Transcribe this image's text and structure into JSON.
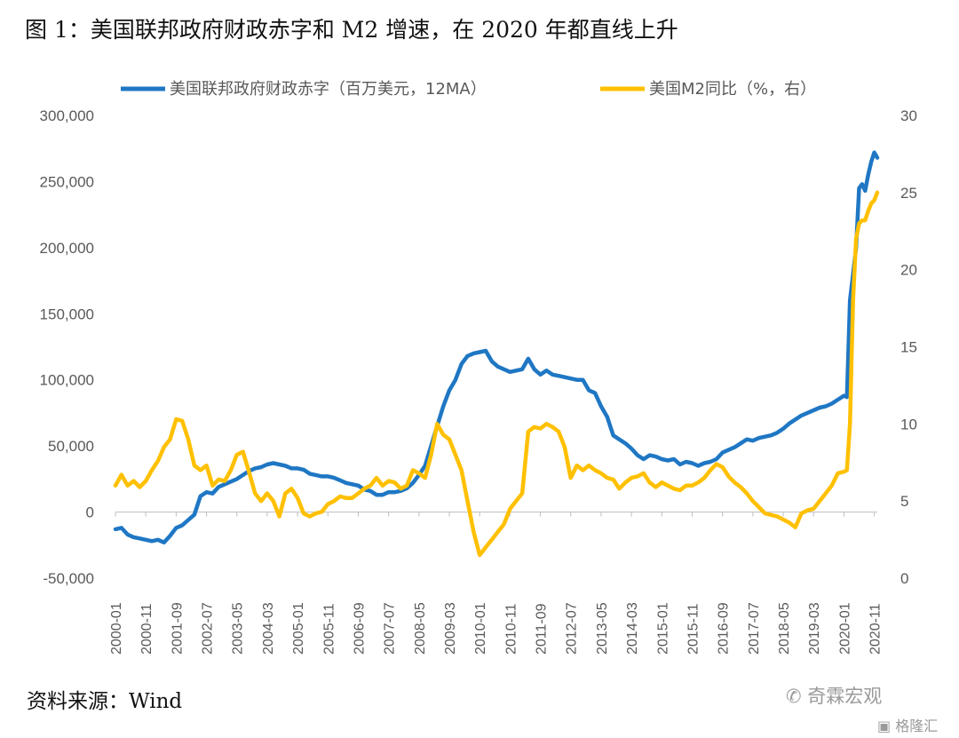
{
  "title": "图 1：美国联邦政府财政赤字和 M2 增速，在 2020 年都直线上升",
  "source": "资料来源：Wind",
  "watermark": {
    "main": "奇霖宏观",
    "sub": "格隆汇",
    "icon": "wechat-icon",
    "logo": "gelonghui-logo"
  },
  "chart_data": {
    "type": "line",
    "title": "图 1：美国联邦政府财政赤字和 M2 增速，在 2020 年都直线上升",
    "legend_position": "top",
    "grid": false,
    "x_tick_labels": [
      "2000-01",
      "2000-11",
      "2001-09",
      "2002-07",
      "2003-05",
      "2004-03",
      "2005-01",
      "2005-11",
      "2006-09",
      "2007-07",
      "2008-05",
      "2009-03",
      "2010-01",
      "2010-11",
      "2011-09",
      "2012-07",
      "2013-05",
      "2014-03",
      "2015-01",
      "2015-11",
      "2016-09",
      "2017-07",
      "2018-05",
      "2019-03",
      "2020-01",
      "2020-11"
    ],
    "y_left": {
      "range": [
        -50000,
        300000
      ],
      "ticks": [
        "-50,000",
        "0",
        "50,000",
        "100,000",
        "150,000",
        "200,000",
        "250,000",
        "300,000"
      ],
      "tick_values": [
        -50000,
        0,
        50000,
        100000,
        150000,
        200000,
        250000,
        300000
      ]
    },
    "y_right": {
      "range": [
        0,
        30
      ],
      "ticks": [
        "0",
        "5",
        "10",
        "15",
        "20",
        "25",
        "30"
      ],
      "tick_values": [
        0,
        5,
        10,
        15,
        20,
        25,
        30
      ]
    },
    "series": [
      {
        "name": "美国联邦政府财政赤字（百万美元，12MA）",
        "axis": "left",
        "color": "#1f77c4",
        "points": [
          [
            "2000-01",
            -13000
          ],
          [
            "2000-03",
            -12000
          ],
          [
            "2000-05",
            -17000
          ],
          [
            "2000-07",
            -19000
          ],
          [
            "2000-09",
            -20000
          ],
          [
            "2000-11",
            -21000
          ],
          [
            "2001-01",
            -22000
          ],
          [
            "2001-03",
            -21000
          ],
          [
            "2001-05",
            -23000
          ],
          [
            "2001-07",
            -18000
          ],
          [
            "2001-09",
            -12000
          ],
          [
            "2001-11",
            -10000
          ],
          [
            "2002-01",
            -6000
          ],
          [
            "2002-03",
            -2000
          ],
          [
            "2002-05",
            12000
          ],
          [
            "2002-07",
            15000
          ],
          [
            "2002-09",
            14000
          ],
          [
            "2002-11",
            19000
          ],
          [
            "2003-01",
            21000
          ],
          [
            "2003-03",
            23000
          ],
          [
            "2003-05",
            25000
          ],
          [
            "2003-07",
            28000
          ],
          [
            "2003-09",
            31000
          ],
          [
            "2003-11",
            33000
          ],
          [
            "2004-01",
            34000
          ],
          [
            "2004-03",
            36000
          ],
          [
            "2004-05",
            37000
          ],
          [
            "2004-07",
            36000
          ],
          [
            "2004-09",
            35000
          ],
          [
            "2004-11",
            33000
          ],
          [
            "2005-01",
            33000
          ],
          [
            "2005-03",
            32000
          ],
          [
            "2005-05",
            29000
          ],
          [
            "2005-07",
            28000
          ],
          [
            "2005-09",
            27000
          ],
          [
            "2005-11",
            27000
          ],
          [
            "2006-01",
            26000
          ],
          [
            "2006-03",
            24000
          ],
          [
            "2006-05",
            22000
          ],
          [
            "2006-07",
            21000
          ],
          [
            "2006-09",
            20000
          ],
          [
            "2006-11",
            17000
          ],
          [
            "2007-01",
            16000
          ],
          [
            "2007-03",
            13000
          ],
          [
            "2007-05",
            13000
          ],
          [
            "2007-07",
            15000
          ],
          [
            "2007-09",
            15000
          ],
          [
            "2007-11",
            16000
          ],
          [
            "2008-01",
            18000
          ],
          [
            "2008-03",
            22000
          ],
          [
            "2008-05",
            28000
          ],
          [
            "2008-07",
            35000
          ],
          [
            "2008-09",
            50000
          ],
          [
            "2008-11",
            65000
          ],
          [
            "2009-01",
            80000
          ],
          [
            "2009-03",
            92000
          ],
          [
            "2009-05",
            100000
          ],
          [
            "2009-07",
            112000
          ],
          [
            "2009-09",
            118000
          ],
          [
            "2009-11",
            120000
          ],
          [
            "2010-01",
            121000
          ],
          [
            "2010-03",
            122000
          ],
          [
            "2010-05",
            114000
          ],
          [
            "2010-07",
            110000
          ],
          [
            "2010-09",
            108000
          ],
          [
            "2010-11",
            106000
          ],
          [
            "2011-01",
            107000
          ],
          [
            "2011-03",
            108000
          ],
          [
            "2011-05",
            116000
          ],
          [
            "2011-07",
            108000
          ],
          [
            "2011-09",
            104000
          ],
          [
            "2011-11",
            107000
          ],
          [
            "2012-01",
            104000
          ],
          [
            "2012-03",
            103000
          ],
          [
            "2012-05",
            102000
          ],
          [
            "2012-07",
            101000
          ],
          [
            "2012-09",
            100000
          ],
          [
            "2012-11",
            100000
          ],
          [
            "2013-01",
            92000
          ],
          [
            "2013-03",
            90000
          ],
          [
            "2013-05",
            80000
          ],
          [
            "2013-07",
            72000
          ],
          [
            "2013-09",
            58000
          ],
          [
            "2013-11",
            55000
          ],
          [
            "2014-01",
            52000
          ],
          [
            "2014-03",
            48000
          ],
          [
            "2014-05",
            43000
          ],
          [
            "2014-07",
            40000
          ],
          [
            "2014-09",
            43000
          ],
          [
            "2014-11",
            42000
          ],
          [
            "2015-01",
            40000
          ],
          [
            "2015-03",
            39000
          ],
          [
            "2015-05",
            40000
          ],
          [
            "2015-07",
            36000
          ],
          [
            "2015-09",
            38000
          ],
          [
            "2015-11",
            37000
          ],
          [
            "2016-01",
            35000
          ],
          [
            "2016-03",
            37000
          ],
          [
            "2016-05",
            38000
          ],
          [
            "2016-07",
            40000
          ],
          [
            "2016-09",
            45000
          ],
          [
            "2016-11",
            47000
          ],
          [
            "2017-01",
            49000
          ],
          [
            "2017-03",
            52000
          ],
          [
            "2017-05",
            55000
          ],
          [
            "2017-07",
            54000
          ],
          [
            "2017-09",
            56000
          ],
          [
            "2017-11",
            57000
          ],
          [
            "2018-01",
            58000
          ],
          [
            "2018-03",
            60000
          ],
          [
            "2018-05",
            63000
          ],
          [
            "2018-07",
            67000
          ],
          [
            "2018-09",
            70000
          ],
          [
            "2018-11",
            73000
          ],
          [
            "2019-01",
            75000
          ],
          [
            "2019-03",
            77000
          ],
          [
            "2019-05",
            79000
          ],
          [
            "2019-07",
            80000
          ],
          [
            "2019-09",
            82000
          ],
          [
            "2019-11",
            85000
          ],
          [
            "2020-01",
            88000
          ],
          [
            "2020-02",
            87000
          ],
          [
            "2020-03",
            160000
          ],
          [
            "2020-04",
            180000
          ],
          [
            "2020-05",
            200000
          ],
          [
            "2020-06",
            245000
          ],
          [
            "2020-07",
            248000
          ],
          [
            "2020-08",
            243000
          ],
          [
            "2020-09",
            255000
          ],
          [
            "2020-10",
            265000
          ],
          [
            "2020-11",
            272000
          ],
          [
            "2020-12",
            268000
          ]
        ]
      },
      {
        "name": "美国M2同比（%，右）",
        "axis": "right",
        "color": "#ffc000",
        "points": [
          [
            "2000-01",
            6.0
          ],
          [
            "2000-03",
            6.7
          ],
          [
            "2000-05",
            6.0
          ],
          [
            "2000-07",
            6.3
          ],
          [
            "2000-09",
            5.9
          ],
          [
            "2000-11",
            6.3
          ],
          [
            "2001-01",
            7.0
          ],
          [
            "2001-03",
            7.6
          ],
          [
            "2001-05",
            8.5
          ],
          [
            "2001-07",
            9.0
          ],
          [
            "2001-09",
            10.3
          ],
          [
            "2001-11",
            10.2
          ],
          [
            "2002-01",
            9.0
          ],
          [
            "2002-03",
            7.3
          ],
          [
            "2002-05",
            7.0
          ],
          [
            "2002-07",
            7.3
          ],
          [
            "2002-09",
            6.0
          ],
          [
            "2002-11",
            6.4
          ],
          [
            "2003-01",
            6.3
          ],
          [
            "2003-03",
            7.0
          ],
          [
            "2003-05",
            8.0
          ],
          [
            "2003-07",
            8.2
          ],
          [
            "2003-09",
            6.9
          ],
          [
            "2003-11",
            5.5
          ],
          [
            "2004-01",
            5.0
          ],
          [
            "2004-03",
            5.5
          ],
          [
            "2004-05",
            5.0
          ],
          [
            "2004-07",
            4.0
          ],
          [
            "2004-09",
            5.5
          ],
          [
            "2004-11",
            5.8
          ],
          [
            "2005-01",
            5.2
          ],
          [
            "2005-03",
            4.2
          ],
          [
            "2005-05",
            4.0
          ],
          [
            "2005-07",
            4.2
          ],
          [
            "2005-09",
            4.3
          ],
          [
            "2005-11",
            4.8
          ],
          [
            "2006-01",
            5.0
          ],
          [
            "2006-03",
            5.3
          ],
          [
            "2006-05",
            5.2
          ],
          [
            "2006-07",
            5.2
          ],
          [
            "2006-09",
            5.5
          ],
          [
            "2006-11",
            5.8
          ],
          [
            "2007-01",
            6.0
          ],
          [
            "2007-03",
            6.5
          ],
          [
            "2007-05",
            6.0
          ],
          [
            "2007-07",
            6.3
          ],
          [
            "2007-09",
            6.2
          ],
          [
            "2007-11",
            5.8
          ],
          [
            "2008-01",
            6.0
          ],
          [
            "2008-03",
            7.0
          ],
          [
            "2008-05",
            6.8
          ],
          [
            "2008-07",
            6.5
          ],
          [
            "2008-09",
            8.0
          ],
          [
            "2008-11",
            10.0
          ],
          [
            "2009-01",
            9.3
          ],
          [
            "2009-03",
            9.0
          ],
          [
            "2009-05",
            8.0
          ],
          [
            "2009-07",
            7.0
          ],
          [
            "2009-09",
            5.0
          ],
          [
            "2009-11",
            3.0
          ],
          [
            "2010-01",
            1.5
          ],
          [
            "2010-03",
            2.0
          ],
          [
            "2010-05",
            2.5
          ],
          [
            "2010-07",
            3.0
          ],
          [
            "2010-09",
            3.5
          ],
          [
            "2010-11",
            4.5
          ],
          [
            "2011-01",
            5.0
          ],
          [
            "2011-03",
            5.5
          ],
          [
            "2011-05",
            9.5
          ],
          [
            "2011-07",
            9.8
          ],
          [
            "2011-09",
            9.7
          ],
          [
            "2011-11",
            10.0
          ],
          [
            "2012-01",
            9.8
          ],
          [
            "2012-03",
            9.5
          ],
          [
            "2012-05",
            8.5
          ],
          [
            "2012-07",
            6.5
          ],
          [
            "2012-09",
            7.3
          ],
          [
            "2012-11",
            7.0
          ],
          [
            "2013-01",
            7.3
          ],
          [
            "2013-03",
            7.0
          ],
          [
            "2013-05",
            6.8
          ],
          [
            "2013-07",
            6.5
          ],
          [
            "2013-09",
            6.4
          ],
          [
            "2013-11",
            5.8
          ],
          [
            "2014-01",
            6.2
          ],
          [
            "2014-03",
            6.5
          ],
          [
            "2014-05",
            6.6
          ],
          [
            "2014-07",
            6.8
          ],
          [
            "2014-09",
            6.2
          ],
          [
            "2014-11",
            5.9
          ],
          [
            "2015-01",
            6.2
          ],
          [
            "2015-03",
            6.0
          ],
          [
            "2015-05",
            5.8
          ],
          [
            "2015-07",
            5.7
          ],
          [
            "2015-09",
            6.0
          ],
          [
            "2015-11",
            6.0
          ],
          [
            "2016-01",
            6.2
          ],
          [
            "2016-03",
            6.5
          ],
          [
            "2016-05",
            7.0
          ],
          [
            "2016-07",
            7.4
          ],
          [
            "2016-09",
            7.2
          ],
          [
            "2016-11",
            6.6
          ],
          [
            "2017-01",
            6.2
          ],
          [
            "2017-03",
            5.9
          ],
          [
            "2017-05",
            5.5
          ],
          [
            "2017-07",
            5.0
          ],
          [
            "2017-09",
            4.6
          ],
          [
            "2017-11",
            4.2
          ],
          [
            "2018-01",
            4.1
          ],
          [
            "2018-03",
            4.0
          ],
          [
            "2018-05",
            3.8
          ],
          [
            "2018-07",
            3.6
          ],
          [
            "2018-09",
            3.3
          ],
          [
            "2018-11",
            4.2
          ],
          [
            "2019-01",
            4.4
          ],
          [
            "2019-03",
            4.5
          ],
          [
            "2019-05",
            5.0
          ],
          [
            "2019-07",
            5.5
          ],
          [
            "2019-09",
            6.0
          ],
          [
            "2019-11",
            6.8
          ],
          [
            "2020-01",
            6.9
          ],
          [
            "2020-02",
            7.0
          ],
          [
            "2020-03",
            10.0
          ],
          [
            "2020-04",
            18.0
          ],
          [
            "2020-05",
            22.0
          ],
          [
            "2020-06",
            23.0
          ],
          [
            "2020-07",
            23.2
          ],
          [
            "2020-08",
            23.2
          ],
          [
            "2020-09",
            23.8
          ],
          [
            "2020-10",
            24.3
          ],
          [
            "2020-11",
            24.5
          ],
          [
            "2020-12",
            25.0
          ]
        ]
      }
    ]
  }
}
